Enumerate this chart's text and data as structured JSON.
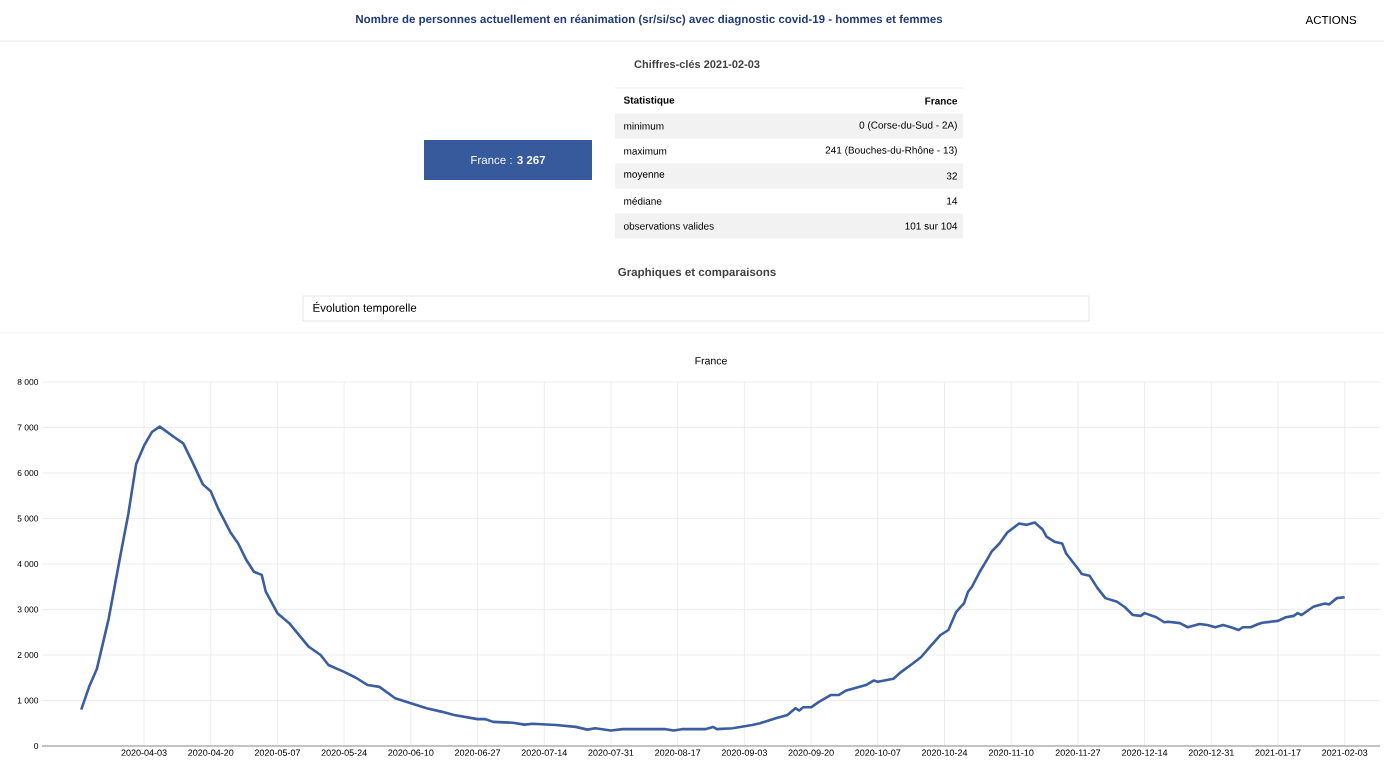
{
  "chart_data": [
    {
      "type": "other",
      "title": "Nombre de personnes actuellement en réanimation (sr/si/sc) avec diagnostic covid-19 - hommes et femmes",
      "subtitle": "Chiffres-clés 2021-02-03",
      "annotations": [
        "France : **3 267**",
        "Statistique",
        "France",
        "minimum",
        "0 (Corse-du-Sud - 2A)",
        "maximum",
        "241 (Bouches-du-Rhône - 13)",
        "moyenne",
        "32",
        "médiane",
        "14",
        "observations valides",
        "101 sur 104",
        "Graphiques et comparaisons",
        "Évolution temporelle",
        "ACTIONS"
      ]
    },
    {
      "type": "line",
      "title": "France",
      "x": [
        "2020-03-18",
        "2020-03-20",
        "2020-03-22",
        "2020-03-25",
        "2020-03-28",
        "2020-03-30",
        "2020-04-01",
        "2020-04-03",
        "2020-04-05",
        "2020-04-07",
        "2020-04-11",
        "2020-04-13",
        "2020-04-15",
        "2020-04-18",
        "2020-04-20",
        "2020-04-22",
        "2020-04-25",
        "2020-04-27",
        "2020-04-29",
        "2020-05-01",
        "2020-05-03",
        "2020-05-04",
        "2020-05-07",
        "2020-05-10",
        "2020-05-15",
        "2020-05-18",
        "2020-05-20",
        "2020-05-24",
        "2020-05-27",
        "2020-05-30",
        "2020-06-02",
        "2020-06-06",
        "2020-06-10",
        "2020-06-14",
        "2020-06-18",
        "2020-06-21",
        "2020-06-27",
        "2020-06-29",
        "2020-07-01",
        "2020-07-06",
        "2020-07-09",
        "2020-07-11",
        "2020-07-17",
        "2020-07-22",
        "2020-07-25",
        "2020-07-27",
        "2020-07-31",
        "2020-08-03",
        "2020-08-14",
        "2020-08-16",
        "2020-08-18",
        "2020-08-24",
        "2020-08-26",
        "2020-08-27",
        "2020-08-31",
        "2020-09-05",
        "2020-09-07",
        "2020-09-11",
        "2020-09-14",
        "2020-09-16",
        "2020-09-17",
        "2020-09-18",
        "2020-09-20",
        "2020-09-22",
        "2020-09-25",
        "2020-09-27",
        "2020-09-29",
        "2020-10-04",
        "2020-10-06",
        "2020-10-07",
        "2020-10-11",
        "2020-10-13",
        "2020-10-16",
        "2020-10-18",
        "2020-10-20",
        "2020-10-23",
        "2020-10-25",
        "2020-10-27",
        "2020-10-29",
        "2020-10-30",
        "2020-10-31",
        "2020-11-02",
        "2020-11-04",
        "2020-11-05",
        "2020-11-07",
        "2020-11-09",
        "2020-11-10",
        "2020-11-12",
        "2020-11-14",
        "2020-11-16",
        "2020-11-18",
        "2020-11-19",
        "2020-11-21",
        "2020-11-23",
        "2020-11-24",
        "2020-11-27",
        "2020-11-28",
        "2020-11-30",
        "2020-12-02",
        "2020-12-04",
        "2020-12-07",
        "2020-12-09",
        "2020-12-11",
        "2020-12-13",
        "2020-12-14",
        "2020-12-17",
        "2020-12-19",
        "2020-12-20",
        "2020-12-23",
        "2020-12-25",
        "2020-12-28",
        "2020-12-30",
        "2021-01-01",
        "2021-01-03",
        "2021-01-05",
        "2021-01-07",
        "2021-01-08",
        "2021-01-10",
        "2021-01-12",
        "2021-01-13",
        "2021-01-17",
        "2021-01-19",
        "2021-01-21",
        "2021-01-22",
        "2021-01-23",
        "2021-01-26",
        "2021-01-28",
        "2021-01-29",
        "2021-01-30",
        "2021-02-01",
        "2021-02-03"
      ],
      "series": [
        {
          "color": "#3a5ea0",
          "values": [
            800,
            1300,
            1700,
            2800,
            4200,
            5100,
            6200,
            6600,
            6900,
            7020,
            6770,
            6650,
            6300,
            5750,
            5600,
            5200,
            4700,
            4450,
            4100,
            3830,
            3760,
            3400,
            2920,
            2700,
            2180,
            2000,
            1780,
            1630,
            1500,
            1340,
            1300,
            1050,
            940,
            830,
            750,
            680,
            590,
            590,
            530,
            510,
            470,
            490,
            460,
            420,
            360,
            390,
            340,
            370,
            370,
            340,
            370,
            370,
            420,
            370,
            390,
            460,
            500,
            610,
            680,
            830,
            780,
            850,
            850,
            970,
            1120,
            1120,
            1220,
            1340,
            1440,
            1410,
            1480,
            1630,
            1820,
            1950,
            2150,
            2440,
            2550,
            2950,
            3140,
            3390,
            3500,
            3830,
            4120,
            4270,
            4450,
            4690,
            4760,
            4890,
            4860,
            4910,
            4760,
            4600,
            4490,
            4450,
            4230,
            3900,
            3780,
            3740,
            3470,
            3250,
            3170,
            3050,
            2880,
            2860,
            2920,
            2830,
            2720,
            2730,
            2700,
            2610,
            2680,
            2660,
            2610,
            2660,
            2610,
            2550,
            2610,
            2610,
            2680,
            2710,
            2750,
            2830,
            2860,
            2920,
            2880,
            3060,
            3110,
            3130,
            3110,
            3250,
            3270
          ]
        }
      ],
      "xlim": [
        "2020-03-08",
        "2021-02-12"
      ],
      "xticks": [
        "2020-04-03",
        "2020-04-20",
        "2020-05-07",
        "2020-05-24",
        "2020-06-10",
        "2020-06-27",
        "2020-07-14",
        "2020-07-31",
        "2020-08-17",
        "2020-09-03",
        "2020-09-20",
        "2020-10-07",
        "2020-10-24",
        "2020-11-10",
        "2020-11-27",
        "2020-12-14",
        "2020-12-31",
        "2021-01-17",
        "2021-02-03"
      ],
      "ylim": [
        0,
        8000
      ],
      "yticks": [
        0,
        {
          "value": 1000,
          "label": "1 000"
        },
        {
          "value": 2000,
          "label": "2 000"
        },
        {
          "value": 3000,
          "label": "3 000"
        },
        {
          "value": 4000,
          "label": "4 000"
        },
        {
          "value": 5000,
          "label": "5 000"
        },
        {
          "value": 6000,
          "label": "6 000"
        },
        {
          "value": 7000,
          "label": "7 000"
        },
        {
          "value": 8000,
          "label": "8 000"
        }
      ],
      "grid": true
    }
  ]
}
